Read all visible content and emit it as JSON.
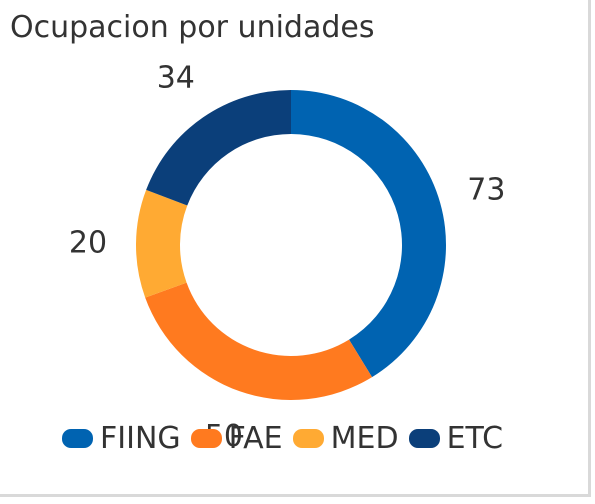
{
  "chart_data": {
    "type": "pie",
    "variant": "donut",
    "title": "Ocupacion por unidades",
    "categories": [
      "FIING",
      "FAE",
      "MED",
      "ETC"
    ],
    "values": [
      73,
      50,
      20,
      34
    ],
    "colors": [
      "#0063B1",
      "#FF7A1F",
      "#FFAA33",
      "#0B3F7A"
    ],
    "legend_position": "bottom",
    "data_labels": [
      "73",
      "50",
      "20",
      "34"
    ]
  }
}
